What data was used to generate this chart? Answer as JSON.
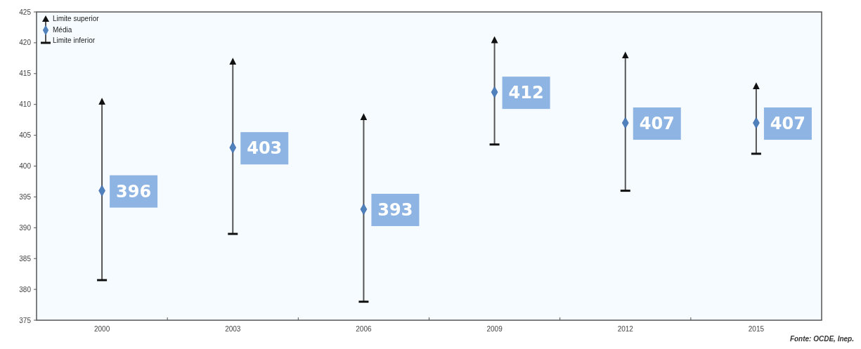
{
  "chart_data": {
    "type": "scatter",
    "categories": [
      "2000",
      "2003",
      "2006",
      "2009",
      "2012",
      "2015"
    ],
    "series": [
      {
        "name": "Média",
        "color": "#4f81bd",
        "marker": "diamond",
        "values": [
          396,
          403,
          393,
          412,
          407,
          407
        ],
        "errors": [
          [
            381.5,
            410.5
          ],
          [
            389,
            417
          ],
          [
            378,
            408
          ],
          [
            403.5,
            420.5
          ],
          [
            396,
            418
          ],
          [
            402,
            413
          ]
        ]
      }
    ],
    "annotations": [
      "Limite superior",
      "Limite inferior",
      "Fonte: OCDE, Inep."
    ],
    "ylim": [
      375,
      425
    ],
    "yticks": [
      375,
      380,
      385,
      390,
      395,
      400,
      405,
      410,
      415,
      420,
      425
    ],
    "data_labels": true,
    "legend": "top left",
    "grid": false
  }
}
